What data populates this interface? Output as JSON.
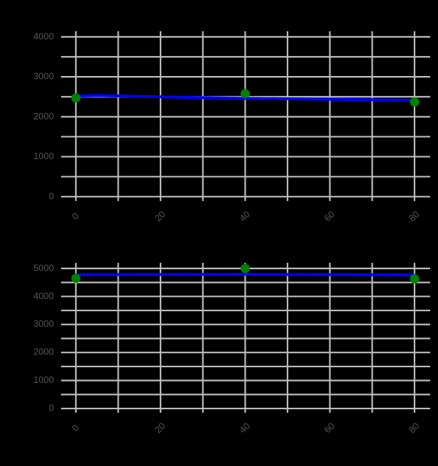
{
  "chart_data": [
    {
      "type": "scatter",
      "x": [
        0,
        40,
        80
      ],
      "values": [
        2470,
        2580,
        2370
      ],
      "color": "#008000",
      "line": {
        "x": [
          0,
          5,
          20,
          40,
          60,
          80
        ],
        "values": [
          2520,
          2530,
          2500,
          2460,
          2440,
          2410
        ],
        "color": "#0000ff"
      },
      "xlim": [
        -3.5,
        83.7
      ],
      "xticks": [
        0,
        20,
        40,
        60,
        80
      ],
      "x_minor_ticks": [
        10,
        30,
        50,
        70
      ],
      "ylim": [
        -110,
        4140
      ],
      "yticks": [
        0,
        1000,
        2000,
        3000,
        4000
      ],
      "y_minor_ticks": [
        500,
        1500,
        2500,
        3500
      ],
      "grid": true
    },
    {
      "type": "scatter",
      "x": [
        0,
        40,
        80
      ],
      "values": [
        4650,
        5000,
        4630
      ],
      "color": "#008000",
      "line": {
        "x": [
          0,
          40,
          80
        ],
        "values": [
          4780,
          4790,
          4770
        ],
        "color": "#0000ff"
      },
      "xlim": [
        -3.5,
        83.7
      ],
      "xticks": [
        0,
        20,
        40,
        60,
        80
      ],
      "x_minor_ticks": [
        10,
        30,
        50,
        70
      ],
      "ylim": [
        -150,
        5200
      ],
      "yticks": [
        0,
        1000,
        2000,
        3000,
        4000,
        5000
      ],
      "y_minor_ticks": [
        500,
        1500,
        2500,
        3500,
        4500
      ],
      "grid": true
    }
  ]
}
